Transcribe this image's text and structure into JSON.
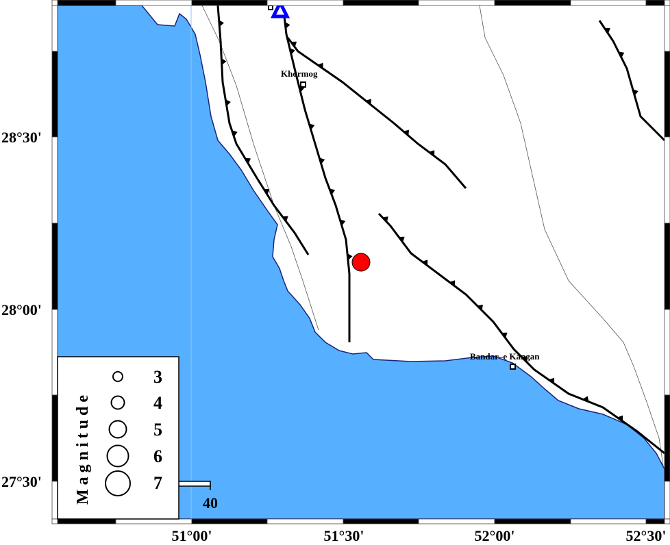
{
  "map": {
    "colors": {
      "sea": "#57B0FF",
      "land": "#FFFFFF",
      "coast": "#1a237e",
      "fault": "#000000",
      "epicenter": "#FF0000",
      "station": "#0000FF"
    },
    "lon_labels": [
      "51°00'",
      "51°30'",
      "52°00'",
      "52°30'"
    ],
    "lat_labels": [
      "28°30'",
      "28°00'",
      "27°30'"
    ],
    "places": [
      {
        "name": "Khormog",
        "icon": "square-town-marker"
      },
      {
        "name": "Bandar–e Kangan",
        "icon": "square-town-marker"
      }
    ],
    "markers": {
      "epicenter": {
        "icon": "red-circle"
      },
      "station": {
        "icon": "blue-triangle"
      }
    },
    "scale_bar": {
      "label": "40"
    },
    "legend": {
      "title": "Magnitude",
      "magnitudes": [
        "3",
        "4",
        "5",
        "6",
        "7"
      ]
    }
  }
}
